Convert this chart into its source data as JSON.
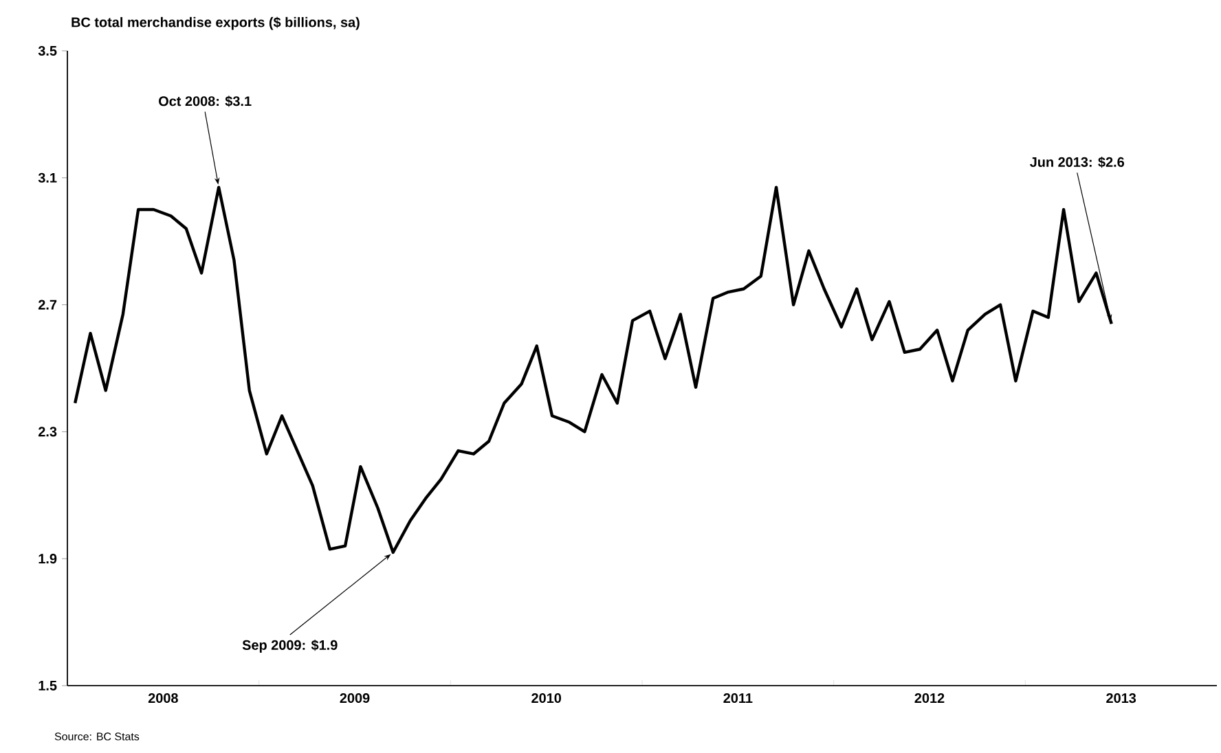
{
  "chart_data": {
    "type": "line",
    "ylabel": "BC total merchandise exports ($ billions, sa)",
    "x": [
      "2008-01-15",
      "2008-02-15",
      "2008-03-15",
      "2008-04-15",
      "2008-05-15",
      "2008-06-15",
      "2008-07-15",
      "2008-08-15",
      "2008-09-15",
      "2008-10-15",
      "2008-11-15",
      "2008-12-15",
      "2009-01-15",
      "2009-02-15",
      "2009-03-15",
      "2009-04-15",
      "2009-05-15",
      "2009-06-15",
      "2009-07-15",
      "2009-08-15",
      "2009-09-15",
      "2009-10-15",
      "2009-11-15",
      "2009-12-15",
      "2010-01-15",
      "2010-02-15",
      "2010-03-15",
      "2010-04-15",
      "2010-05-15",
      "2010-06-15",
      "2010-07-15",
      "2010-08-15",
      "2010-09-15",
      "2010-10-15",
      "2010-11-15",
      "2010-12-15",
      "2011-01-15",
      "2011-02-15",
      "2011-03-15",
      "2011-04-15",
      "2011-05-15",
      "2011-06-15",
      "2011-07-15",
      "2011-08-15",
      "2011-09-15",
      "2011-10-15",
      "2011-11-15",
      "2011-12-15",
      "2012-01-15",
      "2012-02-15",
      "2012-03-15",
      "2012-04-15",
      "2012-05-15",
      "2012-06-15",
      "2012-07-15",
      "2012-08-15",
      "2012-09-15",
      "2012-10-15",
      "2012-11-15",
      "2012-12-15",
      "2013-01-15",
      "2013-02-15",
      "2013-03-15",
      "2013-04-15",
      "2013-05-15",
      "2013-06-15"
    ],
    "series": [
      {
        "color": "#000000",
        "values": [
          2.39,
          2.61,
          2.43,
          2.67,
          3.0,
          3.0,
          2.98,
          2.94,
          2.8,
          3.07,
          2.84,
          2.43,
          2.23,
          2.35,
          2.24,
          2.13,
          1.93,
          1.94,
          2.19,
          2.06,
          1.92,
          2.02,
          2.09,
          2.15,
          2.24,
          2.23,
          2.27,
          2.39,
          2.45,
          2.57,
          2.35,
          2.33,
          2.3,
          2.48,
          2.39,
          2.65,
          2.68,
          2.53,
          2.67,
          2.44,
          2.72,
          2.74,
          2.75,
          2.79,
          3.07,
          2.7,
          2.87,
          2.75,
          2.63,
          2.75,
          2.59,
          2.71,
          2.55,
          2.56,
          2.62,
          2.46,
          2.62,
          2.67,
          2.7,
          2.46,
          2.68,
          2.66,
          3.0,
          2.71,
          2.8,
          2.64
        ]
      }
    ],
    "ylim": [
      1.5,
      3.5
    ],
    "yticks": [
      1.5,
      1.9,
      2.3,
      2.7,
      3.1,
      3.5
    ],
    "xlim": [
      "2008-01-01",
      "2014-01-01"
    ],
    "xticks": [
      {
        "value": "2008-07-01",
        "label": "2008"
      },
      {
        "value": "2009-01-01",
        "label": null
      },
      {
        "value": "2009-07-01",
        "label": "2009"
      },
      {
        "value": "2010-01-01",
        "label": null
      },
      {
        "value": "2010-07-01",
        "label": "2010"
      },
      {
        "value": "2011-01-01",
        "label": null
      },
      {
        "value": "2011-07-01",
        "label": "2011"
      },
      {
        "value": "2012-01-01",
        "label": null
      },
      {
        "value": "2012-07-01",
        "label": "2012"
      },
      {
        "value": "2013-01-01",
        "label": null
      },
      {
        "value": "2013-07-01",
        "label": "2013"
      }
    ],
    "grid": false,
    "legend": false,
    "marker": "none",
    "line_style": "solid",
    "annotations": [
      {
        "text": "Oct 2008: $3.1",
        "x": "2008-10-15",
        "y": 3.07
      },
      {
        "text": "Sep 2009: $1.9",
        "x": "2009-09-15",
        "y": 1.92
      },
      {
        "text": "Jun 2013: $2.6",
        "x": "2013-06-15",
        "y": 2.64
      },
      "Source: BC Stats"
    ]
  }
}
